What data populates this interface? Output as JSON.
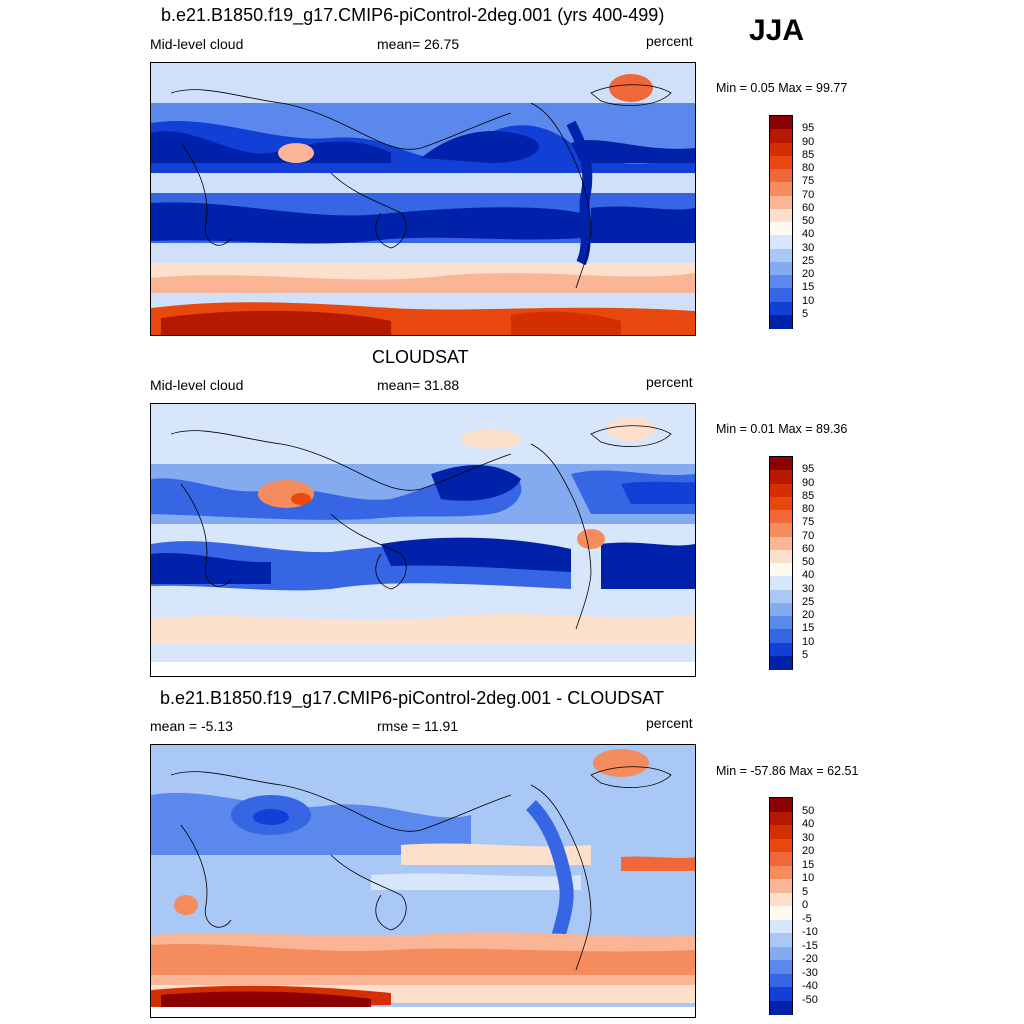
{
  "season": "JJA",
  "panels": [
    {
      "id": "model",
      "title": "b.e21.B1850.f19_g17.CMIP6-piControl-2deg.001 (yrs 400-499)",
      "left_label": "Mid-level cloud",
      "center_label": "mean=  26.75",
      "right_label": "percent",
      "minmax": "Min =   0.05 Max =  99.77"
    },
    {
      "id": "obs",
      "title": "CLOUDSAT",
      "left_label": "Mid-level cloud",
      "center_label": "mean=  31.88",
      "right_label": "percent",
      "minmax": "Min =   0.01 Max =  89.36"
    },
    {
      "id": "diff",
      "title": "b.e21.B1850.f19_g17.CMIP6-piControl-2deg.001 - CLOUDSAT",
      "left_label": "mean =  -5.13",
      "center_label": "rmse =  11.91",
      "right_label": "percent",
      "minmax": "Min = -57.86 Max =  62.51"
    }
  ],
  "colorbars": {
    "absolute": {
      "labels": [
        "95",
        "90",
        "85",
        "80",
        "75",
        "70",
        "60",
        "50",
        "40",
        "30",
        "25",
        "20",
        "15",
        "10",
        "5"
      ],
      "colors": [
        "#8b0000",
        "#b51a00",
        "#d42f00",
        "#e8470e",
        "#f0683a",
        "#f58c5e",
        "#f9b596",
        "#fde0cc",
        "#fffaf0",
        "#d7e6fa",
        "#aac8f5",
        "#84aaf0",
        "#5b88ec",
        "#3666e4",
        "#123fd6",
        "#0022aa"
      ]
    },
    "difference": {
      "labels": [
        "50",
        "40",
        "30",
        "20",
        "15",
        "10",
        "5",
        "0",
        "-5",
        "-10",
        "-15",
        "-20",
        "-30",
        "-40",
        "-50"
      ],
      "colors": [
        "#8b0000",
        "#b51a00",
        "#d42f00",
        "#e8470e",
        "#f0683a",
        "#f58c5e",
        "#f9b596",
        "#fde0cc",
        "#fffaf0",
        "#d7e6fa",
        "#aac8f5",
        "#84aaf0",
        "#5b88ec",
        "#3666e4",
        "#123fd6",
        "#0022aa"
      ]
    }
  }
}
